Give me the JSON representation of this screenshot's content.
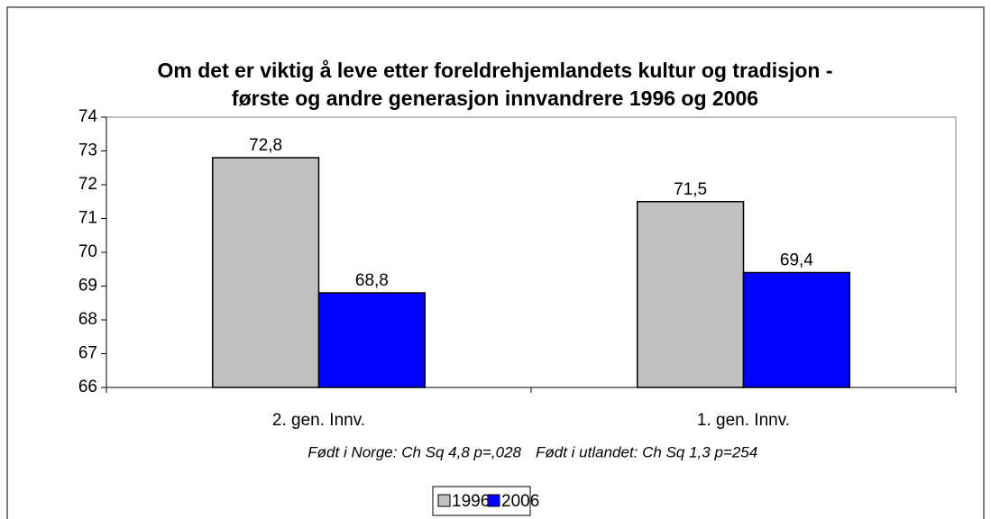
{
  "chart_data": {
    "type": "bar",
    "title": [
      "Om det er viktig å leve etter foreldrehjemlandets kultur og tradisjon -",
      "første og andre generasjon innvandrere 1996 og 2006"
    ],
    "categories": [
      "2. gen. Innv.",
      "1. gen. Innv."
    ],
    "series": [
      {
        "name": "1996",
        "color": "#c0c0c0",
        "values": [
          72.8,
          71.5
        ],
        "value_labels": [
          "72,8",
          "71,5"
        ]
      },
      {
        "name": "2006",
        "color": "#0000ff",
        "values": [
          68.8,
          69.4
        ],
        "value_labels": [
          "68,8",
          "69,4"
        ]
      }
    ],
    "annotations": [
      "Født i Norge: Ch Sq 4,8 p=,028",
      "Født i utlandet: Ch Sq 1,3 p=254"
    ],
    "ylim": [
      66,
      74
    ],
    "yticks": [
      66,
      67,
      68,
      69,
      70,
      71,
      72,
      73,
      74
    ],
    "legend": "bottom"
  }
}
